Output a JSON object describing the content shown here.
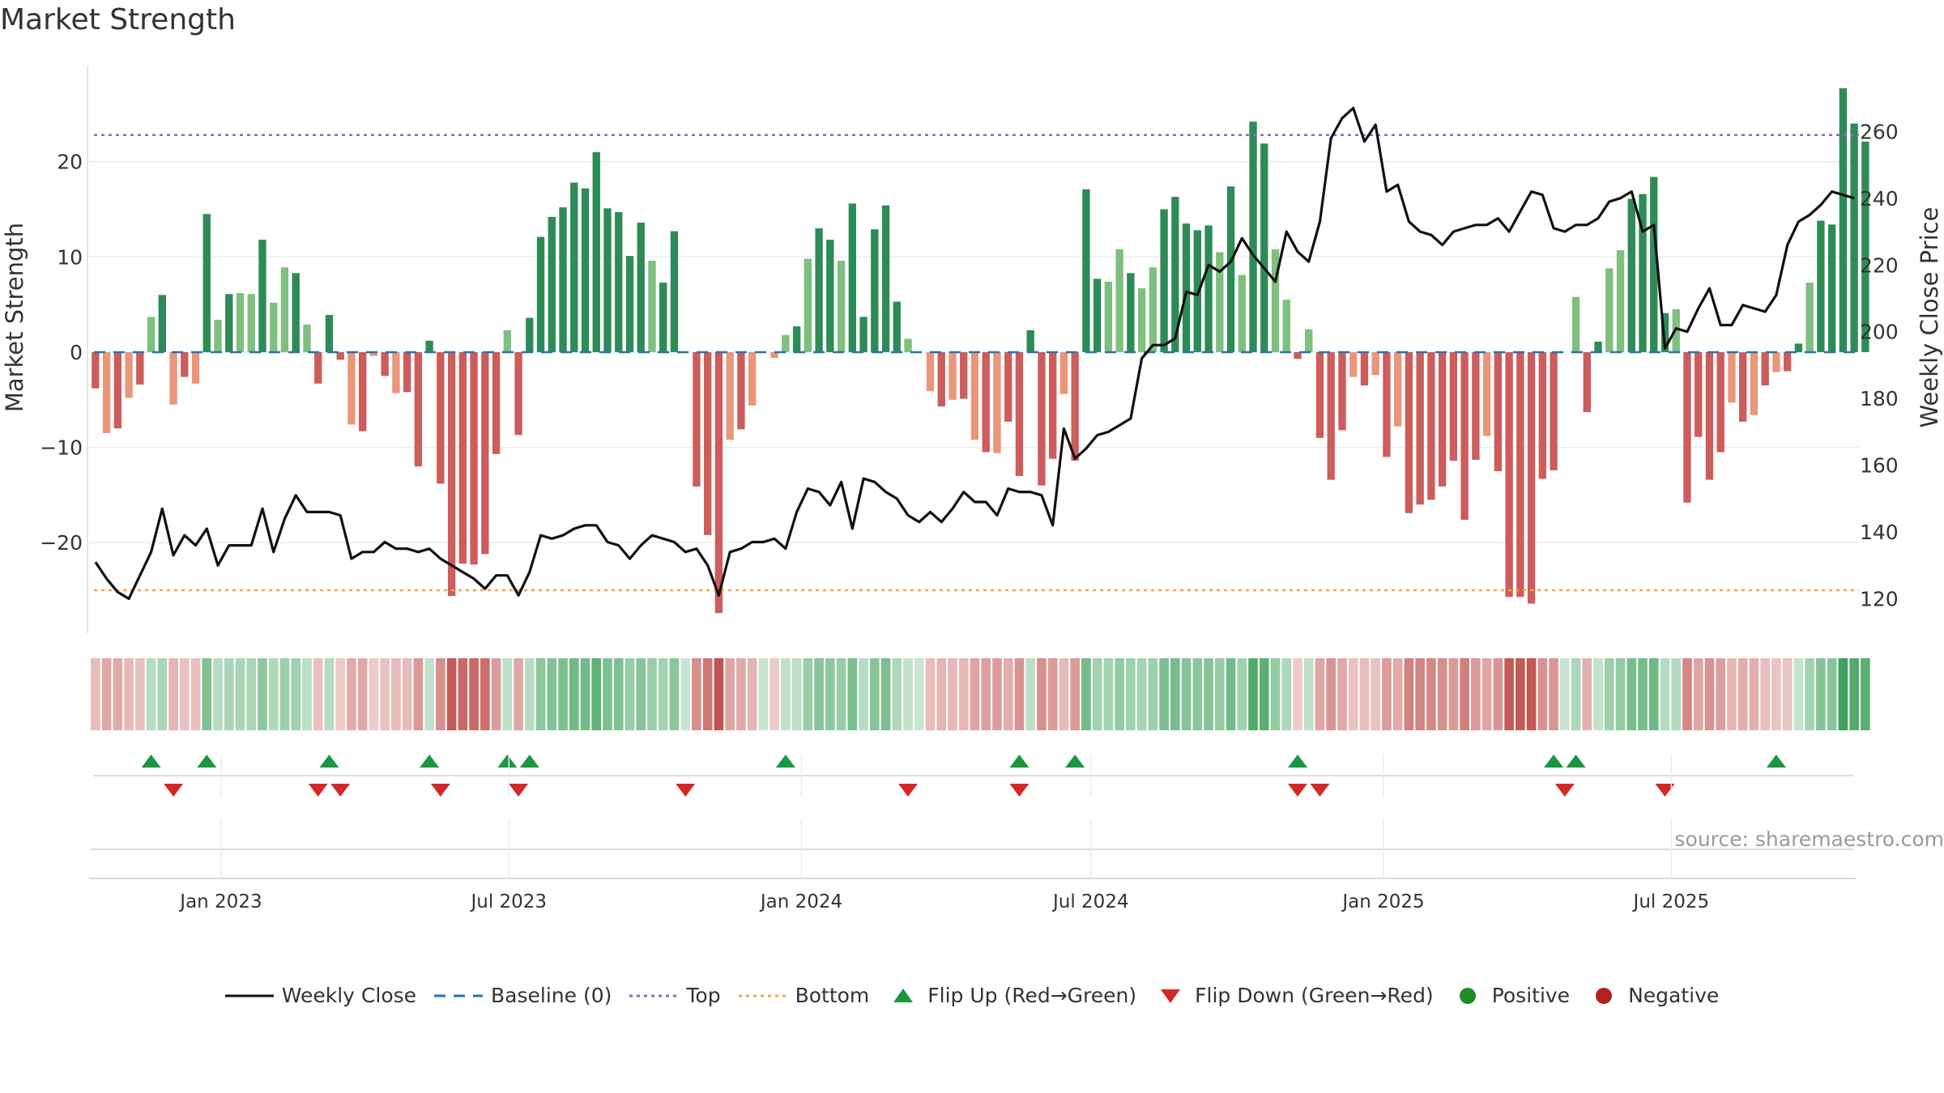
{
  "title": "Market Strength",
  "source": "source: sharemaestro.com",
  "colors": {
    "pos_dark": "#2e8b57",
    "pos_light": "#7fbf7f",
    "neg_dark": "#cd5c5c",
    "neg_light": "#e9967a",
    "close": "#111111",
    "baseline": "#1f77b4",
    "top": "#9467bd",
    "bottom": "#ff9f40",
    "flip_up": "#1a9641",
    "flip_down": "#d62728",
    "positive": "#228b22",
    "negative": "#b22222"
  },
  "chart_data": {
    "type": "bar+line",
    "title": "Market Strength",
    "ylabel": "Market Strength",
    "y2label": "Weekly Close Price",
    "ylim": [
      -29.5,
      30
    ],
    "y2lim": [
      109.7,
      279.5
    ],
    "yticks": [
      -20,
      -10,
      0,
      10,
      20
    ],
    "y2ticks": [
      120,
      140,
      160,
      180,
      200,
      220,
      240,
      260
    ],
    "xlim": [
      "2022-10-10",
      "2025-10-27"
    ],
    "xtick_dates": [
      "2023-01-01",
      "2023-07-01",
      "2024-01-01",
      "2024-07-01",
      "2025-01-01",
      "2025-07-01"
    ],
    "xtick_labels": [
      "Jan 2023",
      "Jul 2023",
      "Jan 2024",
      "Jul 2024",
      "Jan 2025",
      "Jul 2025"
    ],
    "start_date": "2022-10-14",
    "interval_days": 7,
    "top_line": 22.8,
    "bottom_line": -25.0,
    "baseline": 0,
    "strength": [
      -3.8,
      -8.5,
      -8,
      -4.8,
      -3.4,
      3.7,
      6,
      -5.5,
      -2.6,
      -3.3,
      14.5,
      3.4,
      6.1,
      6.2,
      6.1,
      11.8,
      5.2,
      8.9,
      8.3,
      2.9,
      -3.3,
      3.9,
      -0.8,
      -7.6,
      -8.3,
      -0.4,
      -2.5,
      -4.3,
      -4.2,
      -12,
      1.2,
      -13.8,
      -25.6,
      -22.2,
      -22.3,
      -21.2,
      -10.7,
      2.3,
      -8.7,
      3.6,
      12.1,
      14.2,
      15.2,
      17.8,
      17.2,
      21,
      15.1,
      14.7,
      10.1,
      13.6,
      9.6,
      7.3,
      12.7,
      0,
      -14.1,
      -19.2,
      -27.4,
      -9.2,
      -8.1,
      -5.6,
      0,
      -0.6,
      1.8,
      2.7,
      9.8,
      13,
      11.8,
      9.6,
      15.6,
      3.7,
      12.9,
      15.4,
      5.3,
      1.4,
      0,
      -4.1,
      -5.7,
      -5,
      -4.9,
      -9.2,
      -10.5,
      -10.6,
      -7.3,
      -13,
      2.3,
      -14,
      -11.2,
      -4.4,
      -11.4,
      17.1,
      7.7,
      7.4,
      10.8,
      8.3,
      6.7,
      8.9,
      15,
      16.3,
      13.5,
      12.8,
      13.3,
      10.5,
      17.4,
      8.1,
      24.2,
      21.9,
      10.8,
      5.5,
      -0.7,
      2.4,
      -9,
      -13.4,
      -8.2,
      -2.6,
      -3.5,
      -2.4,
      -11,
      -7.8,
      -16.9,
      -16,
      -15.5,
      -14.1,
      -11.4,
      -17.6,
      -11.3,
      -8.8,
      -12.5,
      -25.7,
      -25.7,
      -26.4,
      -13.3,
      -12.4,
      0,
      5.8,
      -6.3,
      1.1,
      8.8,
      10.7,
      16.1,
      16.6,
      18.4,
      4.1,
      4.5,
      -15.8,
      -8.9,
      -13.4,
      -10.5,
      -5.3,
      -7.3,
      -6.6,
      -3.5,
      -2.1,
      -2,
      0.9,
      7.3,
      13.8,
      13.4,
      27.7,
      24,
      22.1
    ],
    "close": [
      131,
      126,
      122,
      120,
      127,
      134,
      147,
      133,
      139,
      136,
      141,
      130,
      136,
      136,
      136,
      147,
      134,
      144,
      151,
      146,
      146,
      146,
      145,
      132,
      134,
      134,
      137,
      135,
      135,
      134,
      135,
      132,
      130,
      128,
      126,
      123,
      127,
      127,
      121,
      128,
      139,
      138,
      139,
      141,
      142,
      142,
      137,
      136,
      132,
      136,
      139,
      138,
      137,
      134,
      135,
      130,
      121,
      134,
      135,
      137,
      137,
      138,
      135,
      146,
      153,
      152,
      148,
      155,
      141,
      156,
      155,
      152,
      150,
      145,
      143,
      146,
      143,
      147,
      152,
      149,
      149,
      145,
      153,
      152,
      152,
      151,
      142,
      171,
      162,
      165,
      169,
      170,
      172,
      174,
      192,
      196,
      196,
      198,
      212,
      211,
      220,
      218,
      221,
      228,
      223,
      219,
      215,
      230,
      224,
      221,
      233,
      258,
      264,
      267,
      257,
      262,
      242,
      244,
      233,
      230,
      229,
      226,
      230,
      231,
      232,
      232,
      234,
      230,
      236,
      242,
      241,
      231,
      230,
      232,
      232,
      234,
      239,
      240,
      242,
      230,
      232,
      195,
      201,
      200,
      207,
      213,
      202,
      202,
      208,
      207,
      206,
      211,
      226,
      233,
      235,
      238,
      242,
      241,
      240
    ],
    "flips_up_index": [
      5,
      10,
      21,
      30,
      37,
      39,
      62,
      83,
      88,
      108,
      131,
      133,
      151
    ],
    "flips_down_index": [
      7,
      20,
      22,
      31,
      38,
      53,
      73,
      83,
      108,
      110,
      132,
      141
    ]
  }
}
